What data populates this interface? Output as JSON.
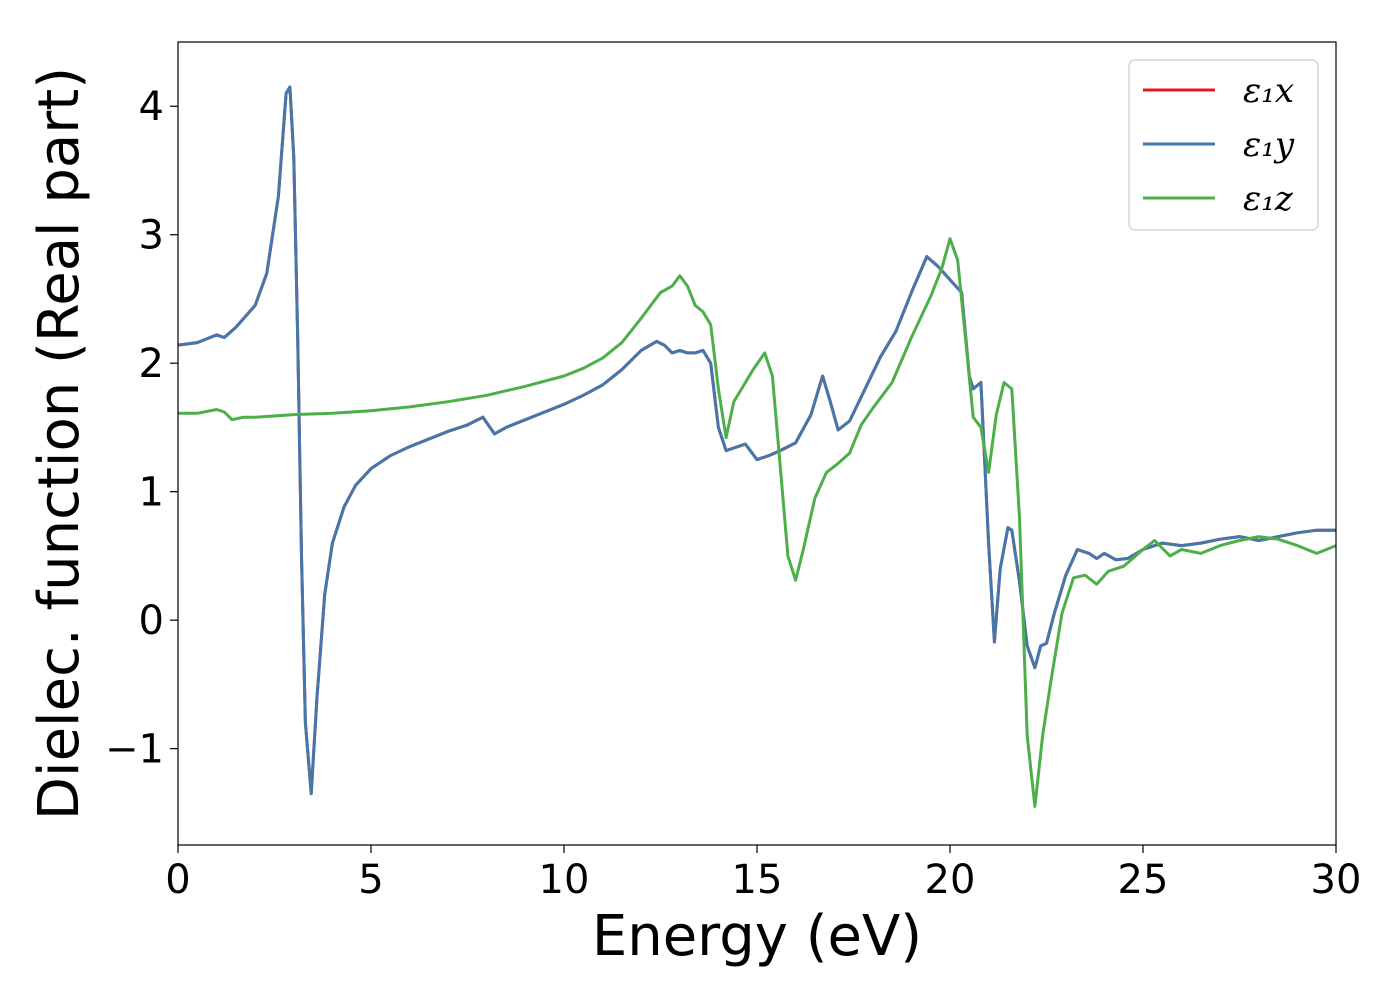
{
  "chart_data": {
    "type": "line",
    "xlabel": "Energy (eV)",
    "ylabel": "Dielec. function (Real part)",
    "xlim": [
      0,
      30
    ],
    "ylim": [
      -1.75,
      4.5
    ],
    "xticks": [
      0,
      5,
      10,
      15,
      20,
      25,
      30
    ],
    "xtick_labels": [
      "0",
      "5",
      "10",
      "15",
      "20",
      "25",
      "30"
    ],
    "yticks": [
      -1,
      0,
      1,
      2,
      3,
      4
    ],
    "ytick_labels": [
      "−1",
      "0",
      "1",
      "2",
      "3",
      "4"
    ],
    "grid": false,
    "legend_position": "top-right",
    "series": [
      {
        "name": "ε₁x",
        "color": "#e41a1c",
        "x": [
          0,
          0.5,
          1.0,
          1.2,
          1.5,
          2.0,
          2.3,
          2.6,
          2.8,
          2.9,
          3.0,
          3.1,
          3.2,
          3.3,
          3.45,
          3.6,
          3.8,
          4.0,
          4.3,
          4.6,
          5.0,
          5.5,
          6.0,
          6.5,
          7.0,
          7.5,
          7.9,
          8.2,
          8.5,
          9.0,
          9.5,
          10.0,
          10.5,
          11.0,
          11.5,
          12.0,
          12.4,
          12.6,
          12.8,
          13.0,
          13.2,
          13.4,
          13.6,
          13.8,
          14.0,
          14.2,
          14.4,
          14.7,
          15.0,
          15.3,
          15.6,
          16.0,
          16.4,
          16.7,
          16.9,
          17.1,
          17.4,
          17.8,
          18.2,
          18.6,
          19.0,
          19.4,
          19.7,
          20.0,
          20.3,
          20.5,
          20.6,
          20.8,
          21.0,
          21.15,
          21.3,
          21.5,
          21.6,
          21.8,
          22.0,
          22.2,
          22.35,
          22.5,
          22.7,
          23.0,
          23.3,
          23.6,
          23.8,
          24.0,
          24.3,
          24.6,
          25.0,
          25.5,
          26.0,
          26.5,
          27.0,
          27.5,
          28.0,
          28.5,
          29.0,
          29.5,
          30.0
        ],
        "y": [
          2.14,
          2.16,
          2.22,
          2.2,
          2.28,
          2.45,
          2.7,
          3.3,
          4.1,
          4.15,
          3.6,
          2.2,
          0.5,
          -0.8,
          -1.35,
          -0.6,
          0.2,
          0.6,
          0.88,
          1.05,
          1.18,
          1.28,
          1.35,
          1.41,
          1.47,
          1.52,
          1.58,
          1.45,
          1.5,
          1.56,
          1.62,
          1.68,
          1.75,
          1.83,
          1.95,
          2.1,
          2.17,
          2.14,
          2.08,
          2.1,
          2.08,
          2.08,
          2.1,
          2.0,
          1.5,
          1.32,
          1.34,
          1.37,
          1.25,
          1.28,
          1.32,
          1.38,
          1.6,
          1.9,
          1.7,
          1.48,
          1.55,
          1.8,
          2.05,
          2.25,
          2.55,
          2.83,
          2.75,
          2.65,
          2.55,
          1.9,
          1.8,
          1.85,
          0.6,
          -0.17,
          0.4,
          0.72,
          0.7,
          0.3,
          -0.2,
          -0.37,
          -0.2,
          -0.18,
          0.05,
          0.35,
          0.55,
          0.52,
          0.48,
          0.52,
          0.47,
          0.48,
          0.55,
          0.6,
          0.58,
          0.6,
          0.63,
          0.65,
          0.62,
          0.65,
          0.68,
          0.7,
          0.7
        ]
      },
      {
        "name": "ε₁y",
        "color": "#4477aa",
        "x": [
          0,
          0.5,
          1.0,
          1.2,
          1.5,
          2.0,
          2.3,
          2.6,
          2.8,
          2.9,
          3.0,
          3.1,
          3.2,
          3.3,
          3.45,
          3.6,
          3.8,
          4.0,
          4.3,
          4.6,
          5.0,
          5.5,
          6.0,
          6.5,
          7.0,
          7.5,
          7.9,
          8.2,
          8.5,
          9.0,
          9.5,
          10.0,
          10.5,
          11.0,
          11.5,
          12.0,
          12.4,
          12.6,
          12.8,
          13.0,
          13.2,
          13.4,
          13.6,
          13.8,
          14.0,
          14.2,
          14.4,
          14.7,
          15.0,
          15.3,
          15.6,
          16.0,
          16.4,
          16.7,
          16.9,
          17.1,
          17.4,
          17.8,
          18.2,
          18.6,
          19.0,
          19.4,
          19.7,
          20.0,
          20.3,
          20.5,
          20.6,
          20.8,
          21.0,
          21.15,
          21.3,
          21.5,
          21.6,
          21.8,
          22.0,
          22.2,
          22.35,
          22.5,
          22.7,
          23.0,
          23.3,
          23.6,
          23.8,
          24.0,
          24.3,
          24.6,
          25.0,
          25.5,
          26.0,
          26.5,
          27.0,
          27.5,
          28.0,
          28.5,
          29.0,
          29.5,
          30.0
        ],
        "y": [
          2.14,
          2.16,
          2.22,
          2.2,
          2.28,
          2.45,
          2.7,
          3.3,
          4.1,
          4.15,
          3.6,
          2.2,
          0.5,
          -0.8,
          -1.35,
          -0.6,
          0.2,
          0.6,
          0.88,
          1.05,
          1.18,
          1.28,
          1.35,
          1.41,
          1.47,
          1.52,
          1.58,
          1.45,
          1.5,
          1.56,
          1.62,
          1.68,
          1.75,
          1.83,
          1.95,
          2.1,
          2.17,
          2.14,
          2.08,
          2.1,
          2.08,
          2.08,
          2.1,
          2.0,
          1.5,
          1.32,
          1.34,
          1.37,
          1.25,
          1.28,
          1.32,
          1.38,
          1.6,
          1.9,
          1.7,
          1.48,
          1.55,
          1.8,
          2.05,
          2.25,
          2.55,
          2.83,
          2.75,
          2.65,
          2.55,
          1.9,
          1.8,
          1.85,
          0.6,
          -0.17,
          0.4,
          0.72,
          0.7,
          0.3,
          -0.2,
          -0.37,
          -0.2,
          -0.18,
          0.05,
          0.35,
          0.55,
          0.52,
          0.48,
          0.52,
          0.47,
          0.48,
          0.55,
          0.6,
          0.58,
          0.6,
          0.63,
          0.65,
          0.62,
          0.65,
          0.68,
          0.7,
          0.7
        ]
      },
      {
        "name": "ε₁z",
        "color": "#4daf4a",
        "x": [
          0,
          0.5,
          1.0,
          1.2,
          1.4,
          1.7,
          2.0,
          3.0,
          4.0,
          5.0,
          6.0,
          7.0,
          8.0,
          9.0,
          10.0,
          10.5,
          11.0,
          11.5,
          12.0,
          12.5,
          12.8,
          13.0,
          13.2,
          13.4,
          13.6,
          13.8,
          14.0,
          14.2,
          14.4,
          14.6,
          14.9,
          15.2,
          15.4,
          15.6,
          15.8,
          16.0,
          16.2,
          16.5,
          16.8,
          17.1,
          17.4,
          17.7,
          18.0,
          18.5,
          19.0,
          19.5,
          19.8,
          20.0,
          20.2,
          20.4,
          20.6,
          20.8,
          21.0,
          21.2,
          21.4,
          21.6,
          21.8,
          22.0,
          22.2,
          22.4,
          22.6,
          22.9,
          23.2,
          23.5,
          23.8,
          24.1,
          24.5,
          25.0,
          25.3,
          25.7,
          26.0,
          26.5,
          27.0,
          27.5,
          28.0,
          28.5,
          29.0,
          29.5,
          30.0
        ],
        "y": [
          1.61,
          1.61,
          1.64,
          1.62,
          1.56,
          1.58,
          1.58,
          1.6,
          1.61,
          1.63,
          1.66,
          1.7,
          1.75,
          1.82,
          1.9,
          1.96,
          2.04,
          2.16,
          2.35,
          2.55,
          2.6,
          2.68,
          2.6,
          2.45,
          2.4,
          2.3,
          1.8,
          1.42,
          1.7,
          1.8,
          1.95,
          2.08,
          1.9,
          1.2,
          0.5,
          0.31,
          0.55,
          0.95,
          1.15,
          1.22,
          1.3,
          1.52,
          1.65,
          1.85,
          2.2,
          2.52,
          2.75,
          2.97,
          2.8,
          2.2,
          1.58,
          1.5,
          1.15,
          1.6,
          1.85,
          1.8,
          0.8,
          -0.9,
          -1.45,
          -0.9,
          -0.5,
          0.05,
          0.33,
          0.35,
          0.28,
          0.38,
          0.42,
          0.55,
          0.62,
          0.5,
          0.55,
          0.52,
          0.58,
          0.62,
          0.65,
          0.63,
          0.58,
          0.52,
          0.58
        ]
      }
    ]
  }
}
